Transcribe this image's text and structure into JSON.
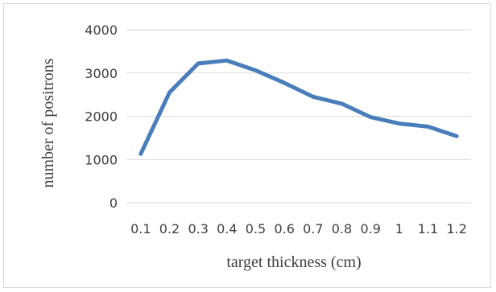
{
  "chart_data": {
    "type": "line",
    "x": [
      "0.1",
      "0.2",
      "0.3",
      "0.4",
      "0.5",
      "0.6",
      "0.7",
      "0.8",
      "0.9",
      "1",
      "1.1",
      "1.2"
    ],
    "series": [
      {
        "values": [
          1130,
          2550,
          3220,
          3290,
          3060,
          2770,
          2450,
          2290,
          1980,
          1830,
          1760,
          1540
        ],
        "color": "#4a7ebb"
      }
    ],
    "title": "",
    "xlabel": "target thickness (cm)",
    "ylabel": "number of positrons",
    "ylim": [
      0,
      4000
    ],
    "yticks": [
      "0",
      "1000",
      "2000",
      "3000",
      "4000"
    ],
    "grid": true,
    "legend": "none"
  }
}
